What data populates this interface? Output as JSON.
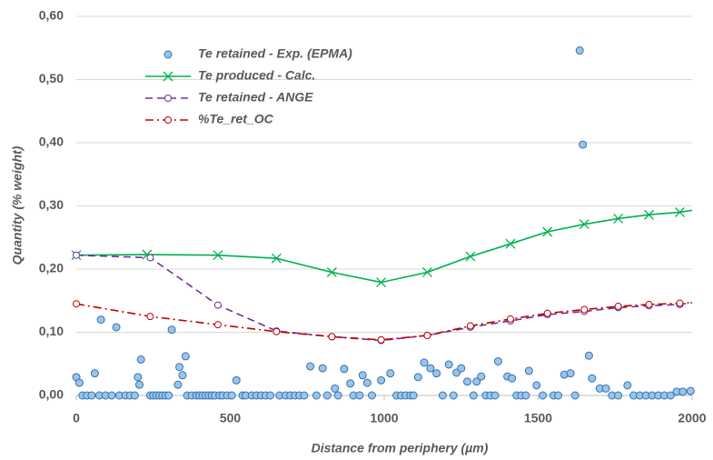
{
  "chart_data": {
    "type": "scatter",
    "ylabel": "Quantity (% weight)",
    "xlabel": "Distance from periphery (µm)",
    "xlim": [
      0,
      2000
    ],
    "xticks": [
      0,
      500,
      1000,
      1500,
      2000
    ],
    "ylim": [
      0,
      0.6
    ],
    "yticks": [
      {
        "value": 0,
        "label": "0,00"
      },
      {
        "value": 0.1,
        "label": "0,10"
      },
      {
        "value": 0.2,
        "label": "0,20"
      },
      {
        "value": 0.3,
        "label": "0,30"
      },
      {
        "value": 0.4,
        "label": "0,40"
      },
      {
        "value": 0.5,
        "label": "0,50"
      },
      {
        "value": 0.6,
        "label": "0,60"
      }
    ],
    "grid": true,
    "legend": "upper left",
    "series": [
      {
        "name": "Te retained - Exp. (EPMA)",
        "kind": "scatter",
        "marker": "circle",
        "color": "#9dc3e6",
        "edge": "#2e75b6",
        "x": [
          0,
          10,
          60,
          80,
          130,
          200,
          205,
          210,
          310,
          330,
          335,
          345,
          355,
          520,
          760,
          800,
          840,
          870,
          890,
          930,
          945,
          990,
          1020,
          1110,
          1130,
          1150,
          1170,
          1210,
          1235,
          1250,
          1270,
          1300,
          1315,
          1370,
          1400,
          1415,
          1470,
          1495,
          1585,
          1605,
          1635,
          1645,
          1665,
          1675,
          1700,
          1720,
          1790,
          1950,
          1970,
          1995,
          20,
          35,
          50,
          75,
          95,
          115,
          140,
          160,
          175,
          190,
          240,
          250,
          260,
          270,
          280,
          290,
          300,
          360,
          375,
          390,
          400,
          410,
          420,
          430,
          440,
          450,
          465,
          475,
          490,
          505,
          540,
          550,
          570,
          585,
          600,
          615,
          630,
          660,
          680,
          695,
          710,
          725,
          740,
          780,
          815,
          850,
          900,
          920,
          960,
          1040,
          1055,
          1070,
          1085,
          1095,
          1190,
          1225,
          1290,
          1330,
          1345,
          1360,
          1430,
          1445,
          1460,
          1515,
          1550,
          1565,
          1620,
          1740,
          1760,
          1810,
          1830,
          1850,
          1870,
          1890,
          1910,
          1930
        ],
        "y": [
          0.029,
          0.02,
          0.035,
          0.12,
          0.108,
          0.029,
          0.017,
          0.057,
          0.104,
          0.017,
          0.045,
          0.032,
          0.062,
          0.024,
          0.046,
          0.043,
          0.011,
          0.042,
          0.019,
          0.032,
          0.02,
          0.024,
          0.035,
          0.029,
          0.052,
          0.043,
          0.035,
          0.049,
          0.036,
          0.043,
          0.022,
          0.022,
          0.03,
          0.054,
          0.03,
          0.027,
          0.039,
          0.016,
          0.033,
          0.035,
          0.546,
          0.397,
          0.063,
          0.027,
          0.011,
          0.011,
          0.016,
          0.006,
          0.006,
          0.007,
          0,
          0,
          0,
          0,
          0,
          0,
          0,
          0,
          0,
          0,
          0,
          0,
          0,
          0,
          0,
          0,
          0,
          0,
          0,
          0,
          0,
          0,
          0,
          0,
          0,
          0,
          0,
          0,
          0,
          0,
          0,
          0,
          0,
          0,
          0,
          0,
          0,
          0,
          0,
          0,
          0,
          0,
          0,
          0,
          0,
          0,
          0,
          0,
          0,
          0,
          0,
          0,
          0,
          0,
          0,
          0,
          0,
          0,
          0,
          0,
          0,
          0,
          0,
          0,
          0,
          0,
          0,
          0,
          0,
          0,
          0,
          0,
          0,
          0,
          0,
          0
        ]
      },
      {
        "name": "Te produced - Calc.",
        "kind": "line",
        "marker": "x",
        "dash": "solid",
        "color": "#00b050",
        "x": [
          0,
          230,
          460,
          650,
          830,
          990,
          1140,
          1280,
          1410,
          1530,
          1650,
          1760,
          1860,
          1960,
          2000
        ],
        "y": [
          0.222,
          0.223,
          0.222,
          0.217,
          0.195,
          0.179,
          0.195,
          0.22,
          0.24,
          0.259,
          0.271,
          0.28,
          0.286,
          0.29,
          0.293
        ]
      },
      {
        "name": "Te retained - ANGE",
        "kind": "line",
        "marker": "circle",
        "dash": "dash",
        "color": "#7030a0",
        "x": [
          0,
          240,
          460,
          650,
          830,
          990,
          1140,
          1280,
          1410,
          1530,
          1650,
          1760,
          1860,
          1960,
          2000
        ],
        "y": [
          0.222,
          0.218,
          0.143,
          0.102,
          0.093,
          0.087,
          0.095,
          0.108,
          0.118,
          0.128,
          0.133,
          0.139,
          0.142,
          0.144,
          0.147
        ]
      },
      {
        "name": "%Te_ret_OC",
        "kind": "line",
        "marker": "circle",
        "dash": "dashdot",
        "color": "#c00000",
        "x": [
          0,
          240,
          460,
          650,
          830,
          990,
          1140,
          1280,
          1410,
          1530,
          1650,
          1760,
          1860,
          1960,
          2000
        ],
        "y": [
          0.145,
          0.125,
          0.112,
          0.101,
          0.093,
          0.088,
          0.095,
          0.11,
          0.121,
          0.13,
          0.136,
          0.141,
          0.144,
          0.146,
          0.147
        ]
      }
    ]
  }
}
